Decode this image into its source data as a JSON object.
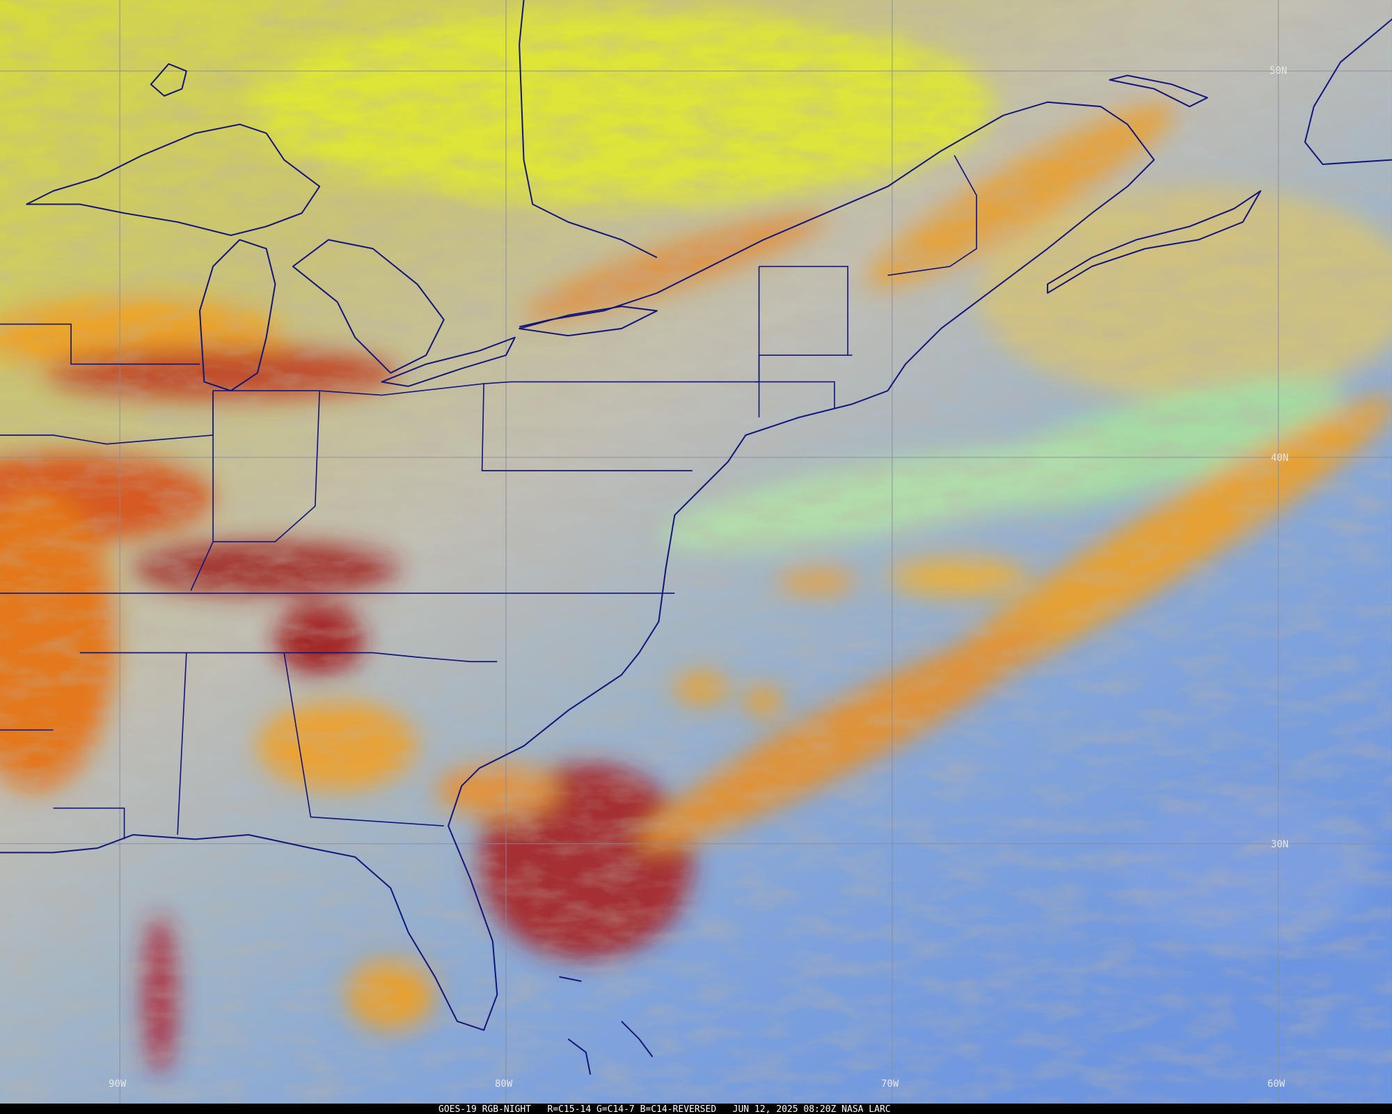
{
  "grid_labels": {
    "latitude": [
      "50N",
      "40N",
      "30N"
    ],
    "longitude": [
      "90W",
      "80W",
      "70W",
      "60W"
    ]
  },
  "footer": "GOES-19 RGB-NIGHT   R=C15-14 G=C14-7 B=C14-REVERSED   JUN 12, 2025 08:20Z NASA LARC"
}
